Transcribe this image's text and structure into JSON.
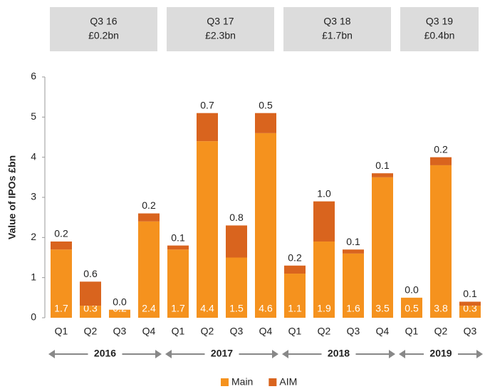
{
  "chart_data": {
    "type": "stacked_bar",
    "y_label": "Value of IPOs £bn",
    "panels": [
      {
        "label": "Q3 16",
        "value": "£0.2bn"
      },
      {
        "label": "Q3 17",
        "value": "£2.3bn"
      },
      {
        "label": "Q3 18",
        "value": "£1.7bn"
      },
      {
        "label": "Q3 19",
        "value": "£0.4bn"
      }
    ],
    "categories": [
      "Q1",
      "Q2",
      "Q3",
      "Q4",
      "Q1",
      "Q2",
      "Q3",
      "Q4",
      "Q1",
      "Q2",
      "Q3",
      "Q4",
      "Q1",
      "Q2",
      "Q3"
    ],
    "category_groups": [
      "2016",
      "2016",
      "2016",
      "2016",
      "2017",
      "2017",
      "2017",
      "2017",
      "2018",
      "2018",
      "2018",
      "2018",
      "2019",
      "2019",
      "2019"
    ],
    "series": [
      {
        "name": "Main",
        "color": "#f5921e",
        "values": [
          1.7,
          0.3,
          0.2,
          2.4,
          1.7,
          4.4,
          1.5,
          4.6,
          1.1,
          1.9,
          1.6,
          3.5,
          0.5,
          3.8,
          0.3
        ],
        "value_labels": [
          "1.7",
          "0.3",
          "0.2",
          "2.4",
          "1.7",
          "4.4",
          "1.5",
          "4.6",
          "1.1",
          "1.9",
          "1.6",
          "3.5",
          "0.5",
          "3.8",
          "0.3"
        ]
      },
      {
        "name": "AIM",
        "color": "#d9641e",
        "values": [
          0.2,
          0.6,
          0.0,
          0.2,
          0.1,
          0.7,
          0.8,
          0.5,
          0.2,
          1.0,
          0.1,
          0.1,
          0.0,
          0.2,
          0.1
        ],
        "value_labels": [
          "0.2",
          "0.6",
          "0.0",
          "0.2",
          "0.1",
          "0.7",
          "0.8",
          "0.5",
          "0.2",
          "1.0",
          "0.1",
          "0.1",
          "0.0",
          "0.2",
          "0.1"
        ]
      }
    ],
    "ylim": [
      0,
      6
    ],
    "yticks": [
      0,
      1,
      2,
      3,
      4,
      5,
      6
    ],
    "grid": false,
    "legend": "bottom"
  }
}
